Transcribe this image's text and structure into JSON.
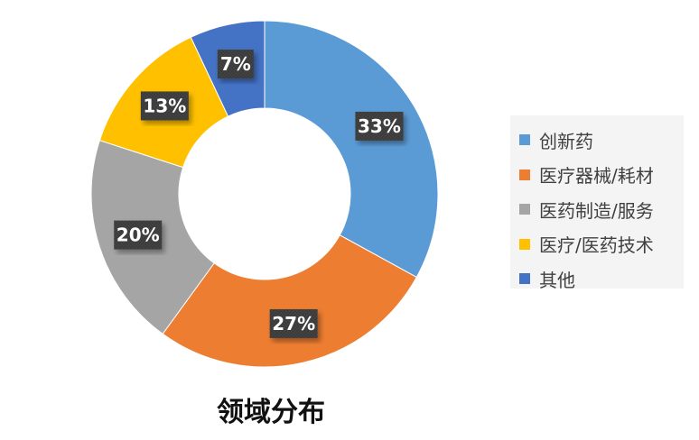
{
  "chart_data": {
    "type": "pie",
    "variant": "donut",
    "title": "领域分布",
    "categories": [
      "创新药",
      "医疗器械/耗材",
      "医药制造/服务",
      "医疗/医药技术",
      "其他"
    ],
    "values": [
      33,
      27,
      20,
      13,
      7
    ],
    "labels": [
      "33%",
      "27%",
      "20%",
      "13%",
      "7%"
    ],
    "colors": [
      "#5b9bd5",
      "#ed7d31",
      "#a5a5a5",
      "#ffc000",
      "#4472c4"
    ],
    "legend_position": "right"
  }
}
